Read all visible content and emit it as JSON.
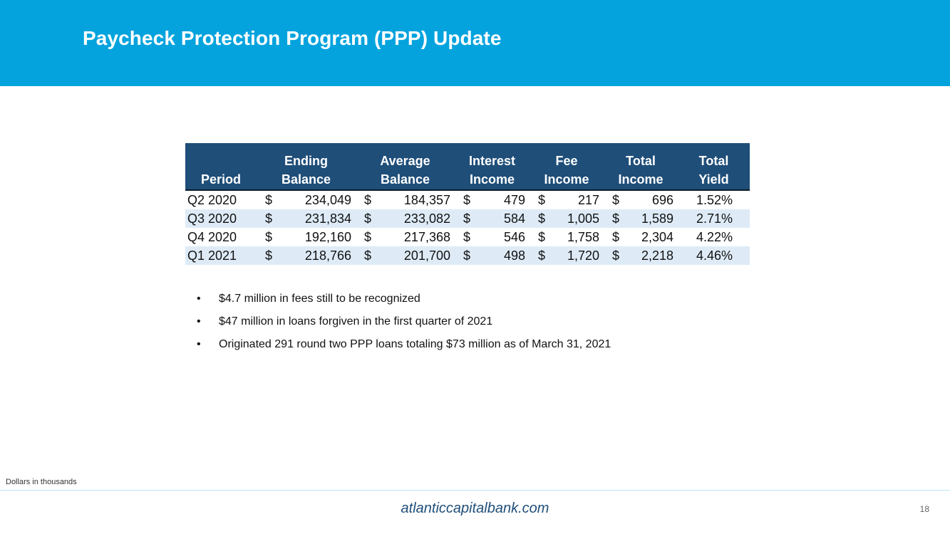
{
  "header": {
    "title": "Paycheck Protection Program (PPP) Update",
    "background_color": "#04a3de"
  },
  "table": {
    "header_color": "#1f4e79",
    "stripe_color": "#deebf7",
    "columns": [
      {
        "line1": "",
        "line2": "Period"
      },
      {
        "line1": "Ending",
        "line2": "Balance"
      },
      {
        "line1": "Average",
        "line2": "Balance"
      },
      {
        "line1": "Interest",
        "line2": "Income"
      },
      {
        "line1": "Fee",
        "line2": "Income"
      },
      {
        "line1": "Total",
        "line2": "Income"
      },
      {
        "line1": "Total",
        "line2": "Yield"
      }
    ],
    "currency_symbol": "$",
    "rows": [
      {
        "period": "Q2 2020",
        "ending_balance": "234,049",
        "average_balance": "184,357",
        "interest_income": "479",
        "fee_income": "217",
        "total_income": "696",
        "total_yield": "1.52%"
      },
      {
        "period": "Q3 2020",
        "ending_balance": "231,834",
        "average_balance": "233,082",
        "interest_income": "584",
        "fee_income": "1,005",
        "total_income": "1,589",
        "total_yield": "2.71%"
      },
      {
        "period": "Q4 2020",
        "ending_balance": "192,160",
        "average_balance": "217,368",
        "interest_income": "546",
        "fee_income": "1,758",
        "total_income": "2,304",
        "total_yield": "4.22%"
      },
      {
        "period": "Q1 2021",
        "ending_balance": "218,766",
        "average_balance": "201,700",
        "interest_income": "498",
        "fee_income": "1,720",
        "total_income": "2,218",
        "total_yield": "4.46%"
      }
    ]
  },
  "bullets": [
    "$4.7 million in fees still to be recognized",
    "$47 million in loans forgiven in the first quarter of 2021",
    "Originated 291 round two PPP loans totaling $73 million as of March 31, 2021"
  ],
  "bullet_glyph": "•",
  "footer": {
    "note": "Dollars in thousands",
    "website": "atlanticcapitalbank.com",
    "page_number": "18"
  }
}
